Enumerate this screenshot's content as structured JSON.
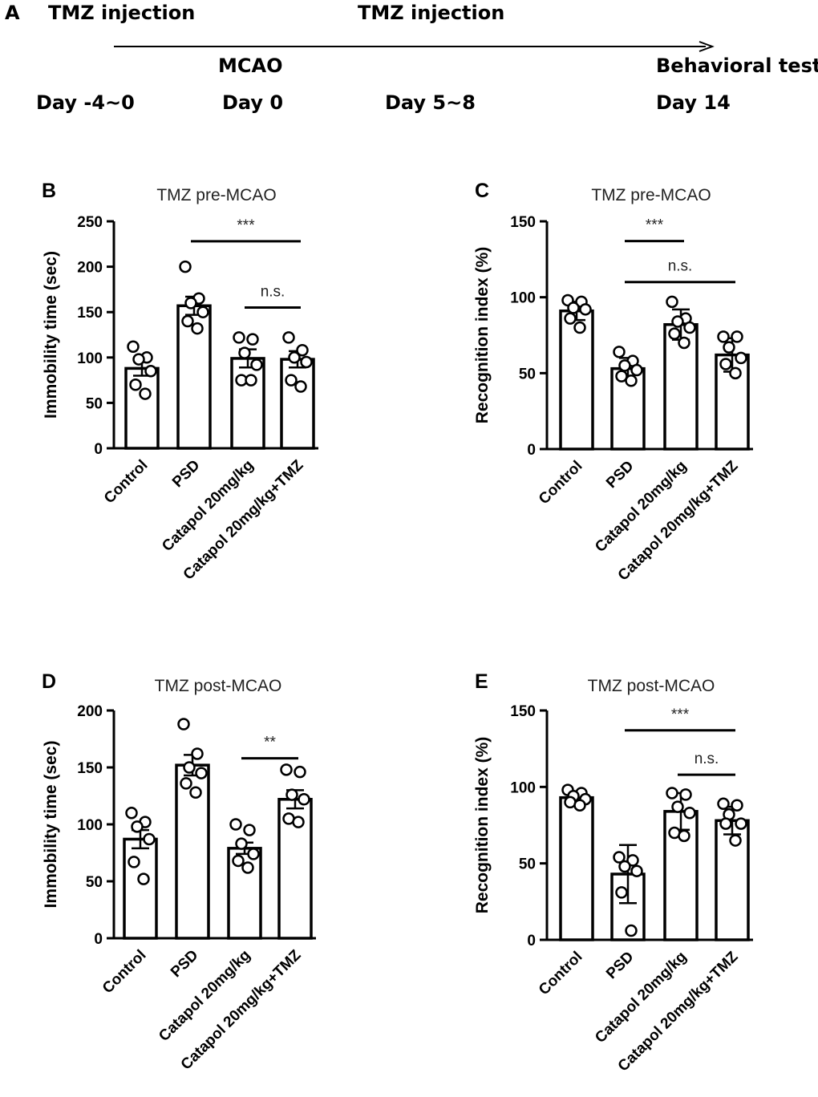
{
  "timeline": {
    "panel_letter": "A",
    "top_left_label": "TMZ injection",
    "top_mid_label": "TMZ injection",
    "mcao_label": "MCAO",
    "behavior_label": "Behavioral tests",
    "days": [
      "Day -4~0",
      "Day 0",
      "Day 5~8",
      "Day 14"
    ]
  },
  "chart_data": [
    {
      "panel": "B",
      "type": "bar",
      "title": "TMZ pre-MCAO",
      "xlabel": "",
      "ylabel": "Immobility time (sec)",
      "ylim": [
        0,
        250
      ],
      "yticks": [
        0,
        50,
        100,
        150,
        200,
        250
      ],
      "categories": [
        "Control",
        "PSD",
        "Catapol 20mg/kg",
        "Catapol 20mg/kg+TMZ"
      ],
      "values": [
        88,
        157,
        99,
        98
      ],
      "errors": [
        8,
        10,
        10,
        9
      ],
      "points": [
        [
          112,
          100,
          98,
          85,
          70,
          60
        ],
        [
          200,
          165,
          160,
          150,
          140,
          132
        ],
        [
          122,
          120,
          105,
          92,
          75,
          75
        ],
        [
          122,
          108,
          100,
          95,
          75,
          68
        ]
      ],
      "annotations": [
        {
          "from": 1,
          "to": 3,
          "y": 228,
          "text": "***"
        },
        {
          "from": 2,
          "to": 3,
          "y": 155,
          "text": "n.s."
        }
      ]
    },
    {
      "panel": "C",
      "type": "bar",
      "title": "TMZ pre-MCAO",
      "xlabel": "",
      "ylabel": "Recognition index (%)",
      "ylim": [
        0,
        150
      ],
      "yticks": [
        0,
        50,
        100,
        150
      ],
      "categories": [
        "Control",
        "PSD",
        "Catapol 20mg/kg",
        "Catapol 20mg/kg+TMZ"
      ],
      "values": [
        91,
        53,
        82,
        62
      ],
      "errors": [
        6,
        7,
        10,
        11
      ],
      "points": [
        [
          98,
          97,
          93,
          92,
          86,
          80
        ],
        [
          64,
          58,
          55,
          52,
          48,
          45
        ],
        [
          97,
          86,
          84,
          80,
          76,
          70
        ],
        [
          74,
          74,
          67,
          60,
          56,
          50
        ]
      ],
      "annotations": [
        {
          "from": 1,
          "to": 2,
          "y": 137,
          "text": "***"
        },
        {
          "from": 1,
          "to": 3,
          "y": 110,
          "text": "n.s."
        }
      ]
    },
    {
      "panel": "D",
      "type": "bar",
      "title": "TMZ post-MCAO",
      "xlabel": "",
      "ylabel": "Immobility time (sec)",
      "ylim": [
        0,
        200
      ],
      "yticks": [
        0,
        50,
        100,
        150,
        200
      ],
      "categories": [
        "Control",
        "PSD",
        "Catapol 20mg/kg",
        "Catapol 20mg/kg+TMZ"
      ],
      "values": [
        87,
        152,
        79,
        122
      ],
      "errors": [
        8,
        9,
        5,
        8
      ],
      "points": [
        [
          110,
          102,
          98,
          87,
          67,
          52
        ],
        [
          188,
          162,
          150,
          145,
          136,
          128
        ],
        [
          100,
          95,
          83,
          74,
          68,
          62
        ],
        [
          148,
          146,
          126,
          122,
          105,
          102
        ]
      ],
      "annotations": [
        {
          "from": 2,
          "to": 3,
          "y": 158,
          "text": "**"
        }
      ]
    },
    {
      "panel": "E",
      "type": "bar",
      "title": "TMZ post-MCAO",
      "xlabel": "",
      "ylabel": "Recognition index (%)",
      "ylim": [
        0,
        150
      ],
      "yticks": [
        0,
        50,
        100,
        150
      ],
      "categories": [
        "Control",
        "PSD",
        "Catapol 20mg/kg",
        "Catapol 20mg/kg+TMZ"
      ],
      "values": [
        93,
        43,
        84,
        78
      ],
      "errors": [
        4,
        19,
        12,
        9
      ],
      "points": [
        [
          98,
          96,
          94,
          92,
          90,
          88
        ],
        [
          54,
          52,
          48,
          45,
          31,
          6
        ],
        [
          96,
          95,
          87,
          83,
          70,
          68
        ],
        [
          89,
          88,
          82,
          76,
          76,
          65
        ]
      ],
      "annotations": [
        {
          "from": 1,
          "to": 3,
          "y": 137,
          "text": "***"
        },
        {
          "from": 2,
          "to": 3,
          "y": 108,
          "text": "n.s."
        }
      ]
    }
  ]
}
